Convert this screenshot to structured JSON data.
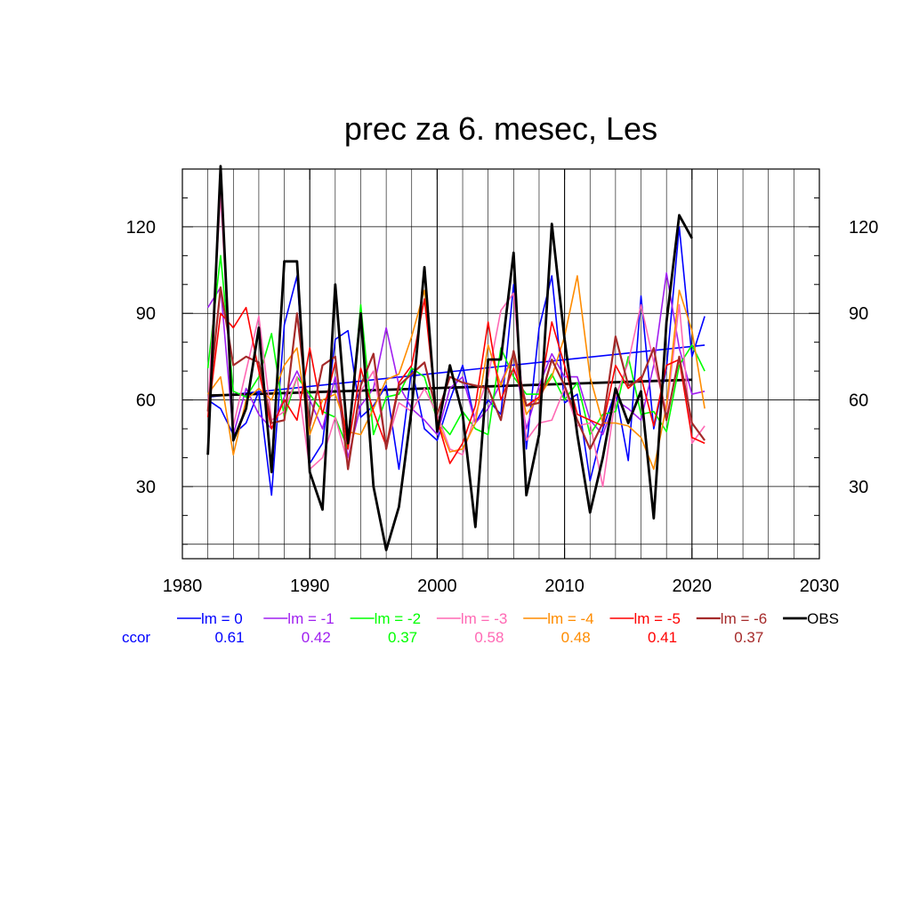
{
  "chart_data": {
    "type": "line",
    "title": "prec za 6. mesec, Les",
    "xlabel": "",
    "ylabel": "",
    "xlim": [
      1980,
      2030
    ],
    "ylim": [
      5,
      140
    ],
    "x_ticks": [
      1980,
      1990,
      2000,
      2010,
      2020,
      2030
    ],
    "y_ticks": [
      30,
      60,
      90,
      120
    ],
    "grid": true,
    "x": [
      1982,
      1983,
      1984,
      1985,
      1986,
      1987,
      1988,
      1989,
      1990,
      1991,
      1992,
      1993,
      1994,
      1995,
      1996,
      1997,
      1998,
      1999,
      2000,
      2001,
      2002,
      2003,
      2004,
      2005,
      2006,
      2007,
      2008,
      2009,
      2010,
      2011,
      2012,
      2013,
      2014,
      2015,
      2016,
      2017,
      2018,
      2019,
      2020,
      2021
    ],
    "series": [
      {
        "name": "lm = 0",
        "color": "#0000ff",
        "width": 1.6,
        "values": [
          60,
          57,
          48,
          52,
          63,
          27,
          86,
          103,
          38,
          45,
          81,
          84,
          54,
          58,
          65,
          36,
          71,
          50,
          46,
          60,
          72,
          52,
          60,
          55,
          100,
          43,
          85,
          103,
          59,
          62,
          32,
          50,
          63,
          39,
          96,
          50,
          71,
          120,
          75,
          89
        ]
      },
      {
        "name": "lm = -1",
        "color": "#a020f0",
        "width": 1.6,
        "values": [
          92,
          99,
          48,
          64,
          55,
          50,
          61,
          70,
          60,
          50,
          68,
          40,
          58,
          64,
          85,
          65,
          57,
          53,
          48,
          64,
          68,
          52,
          57,
          66,
          76,
          50,
          65,
          76,
          68,
          68,
          53,
          48,
          60,
          57,
          53,
          72,
          104,
          78,
          62,
          63
        ]
      },
      {
        "name": "lm = -2",
        "color": "#00ff00",
        "width": 1.6,
        "values": [
          71,
          110,
          63,
          61,
          68,
          83,
          54,
          68,
          62,
          56,
          54,
          43,
          93,
          48,
          61,
          62,
          71,
          68,
          53,
          48,
          56,
          50,
          48,
          78,
          68,
          62,
          62,
          69,
          60,
          66,
          48,
          55,
          56,
          75,
          55,
          56,
          49,
          72,
          79,
          70
        ]
      },
      {
        "name": "lm = -3",
        "color": "#ff69b4",
        "width": 1.6,
        "values": [
          57,
          131,
          51,
          70,
          89,
          53,
          56,
          68,
          36,
          40,
          54,
          38,
          63,
          70,
          44,
          59,
          56,
          64,
          55,
          43,
          41,
          55,
          68,
          91,
          97,
          46,
          52,
          53,
          64,
          51,
          52,
          30,
          61,
          73,
          93,
          73,
          56,
          93,
          45,
          51
        ]
      },
      {
        "name": "lm = -4",
        "color": "#ff8c00",
        "width": 1.6,
        "values": [
          62,
          68,
          41,
          60,
          64,
          60,
          72,
          78,
          48,
          60,
          62,
          49,
          48,
          57,
          67,
          69,
          82,
          98,
          53,
          42,
          43,
          52,
          79,
          65,
          76,
          55,
          61,
          68,
          82,
          103,
          68,
          52,
          52,
          51,
          47,
          36,
          58,
          98,
          84,
          57
        ]
      },
      {
        "name": "lm = -5",
        "color": "#ff0000",
        "width": 1.6,
        "values": [
          54,
          90,
          85,
          92,
          70,
          50,
          60,
          53,
          78,
          55,
          73,
          43,
          71,
          56,
          44,
          66,
          72,
          95,
          53,
          38,
          45,
          58,
          87,
          60,
          71,
          58,
          61,
          87,
          72,
          55,
          53,
          51,
          72,
          64,
          68,
          51,
          72,
          74,
          47,
          45
        ]
      },
      {
        "name": "lm = -6",
        "color": "#a52a2a",
        "width": 2.2,
        "values": [
          56,
          99,
          72,
          75,
          73,
          52,
          53,
          90,
          51,
          72,
          75,
          36,
          65,
          76,
          43,
          65,
          69,
          73,
          55,
          68,
          66,
          65,
          64,
          53,
          77,
          58,
          59,
          74,
          65,
          53,
          43,
          52,
          82,
          65,
          67,
          78,
          53,
          75,
          52,
          46
        ]
      },
      {
        "name": "OBS",
        "color": "#000000",
        "width": 2.8,
        "values": [
          41,
          141,
          46,
          57,
          85,
          35,
          108,
          108,
          35,
          22,
          100,
          45,
          90,
          30,
          8,
          23,
          57,
          106,
          49,
          72,
          55,
          16,
          74,
          74,
          111,
          27,
          48,
          121,
          81,
          48,
          21,
          40,
          64,
          52,
          63,
          19,
          87,
          124,
          116,
          null
        ]
      }
    ],
    "trend_lines": [
      {
        "series": "lm = 0",
        "color": "#0000ff",
        "width": 1.6,
        "x": [
          1982,
          2021
        ],
        "y": [
          61,
          79
        ]
      },
      {
        "series": "OBS",
        "color": "#000000",
        "width": 2.8,
        "x": [
          1982,
          2020
        ],
        "y": [
          61.5,
          67
        ]
      }
    ],
    "ccor": {
      "label": "ccor",
      "label_color": "#0000ff",
      "values": [
        "0.61",
        "0.42",
        "0.37",
        "0.58",
        "0.48",
        "0.41",
        "0.37"
      ]
    }
  }
}
